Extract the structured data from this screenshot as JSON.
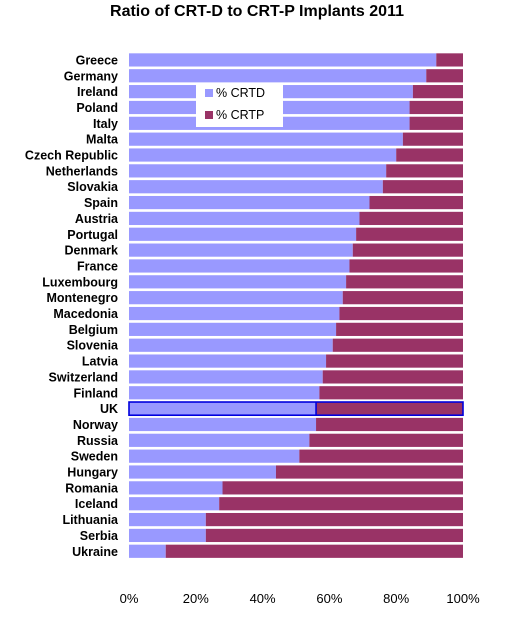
{
  "chart_data": {
    "type": "bar",
    "orientation": "horizontal",
    "stacked": true,
    "title": "Ratio of CRT-D to CRT-P Implants 2011",
    "categories": [
      "Greece",
      "Germany",
      "Ireland",
      "Poland",
      "Italy",
      "Malta",
      "Czech Republic",
      "Netherlands",
      "Slovakia",
      "Spain",
      "Austria",
      "Portugal",
      "Denmark",
      "France",
      "Luxembourg",
      "Montenegro",
      "Macedonia",
      "Belgium",
      "Slovenia",
      "Latvia",
      "Switzerland",
      "Finland",
      "UK",
      "Norway",
      "Russia",
      "Sweden",
      "Hungary",
      "Romania",
      "Iceland",
      "Lithuania",
      "Serbia",
      "Ukraine"
    ],
    "series": [
      {
        "name": "% CRTD",
        "color": "#9999ff",
        "values": [
          92,
          89,
          85,
          84,
          84,
          82,
          80,
          77,
          76,
          72,
          69,
          68,
          67,
          66,
          65,
          64,
          63,
          62,
          61,
          59,
          58,
          57,
          56,
          56,
          54,
          51,
          44,
          28,
          27,
          23,
          23,
          11
        ]
      },
      {
        "name": "% CRTP",
        "color": "#993366",
        "values": [
          8,
          11,
          15,
          16,
          16,
          18,
          20,
          23,
          24,
          28,
          31,
          32,
          33,
          34,
          35,
          36,
          37,
          38,
          39,
          41,
          42,
          43,
          44,
          44,
          46,
          49,
          56,
          72,
          73,
          77,
          77,
          89
        ]
      }
    ],
    "highlighted_category": "UK",
    "xlim": [
      0,
      100
    ],
    "x_ticks": [
      "0%",
      "20%",
      "40%",
      "60%",
      "80%",
      "100%"
    ],
    "legend_position": "top-left-inside"
  }
}
